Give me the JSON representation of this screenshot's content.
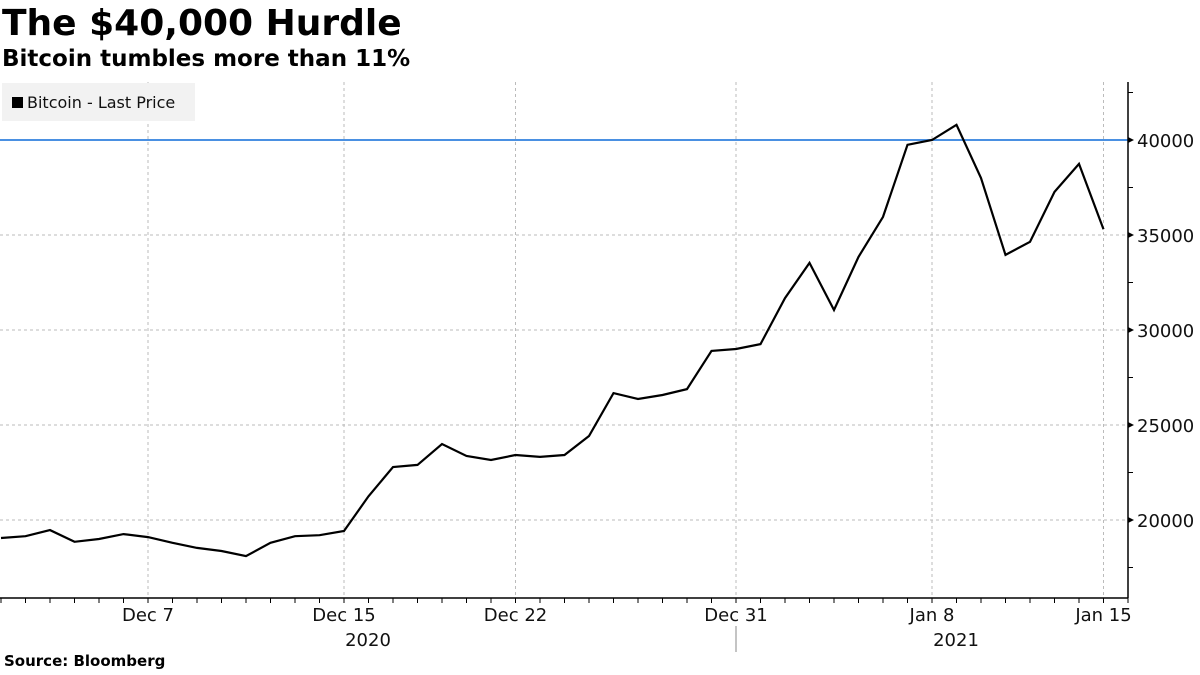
{
  "header": {
    "title": "The $40,000 Hurdle",
    "subtitle": "Bitcoin tumbles more than 11%"
  },
  "legend": {
    "label": "Bitcoin - Last Price",
    "swatch_color": "#000000"
  },
  "footer": {
    "source": "Source: Bloomberg"
  },
  "colors": {
    "line": "#000000",
    "threshold": "#4a90e2",
    "grid": "#bbbbbb",
    "legend_bg": "#f2f2f2"
  },
  "chart_data": {
    "type": "line",
    "title": "The $40,000 Hurdle",
    "subtitle": "Bitcoin tumbles more than 11%",
    "xlabel": "",
    "ylabel": "",
    "legend": [
      "Bitcoin - Last Price"
    ],
    "legend_position": "top-left",
    "grid": true,
    "ylim": [
      16500,
      43000
    ],
    "y_axis_side": "right",
    "y_ticks": [
      20000,
      25000,
      30000,
      35000,
      40000
    ],
    "x_tick_labels": [
      "Dec 7",
      "Dec 15",
      "Dec 22",
      "Dec 31",
      "Jan 8",
      "Jan 15"
    ],
    "x_year_labels": [
      {
        "label": "2020",
        "under": "Dec 15"
      },
      {
        "label": "2021",
        "under": "Jan 8"
      }
    ],
    "annotations": [
      {
        "type": "horizontal_line",
        "y": 40000,
        "color": "#4a90e2"
      }
    ],
    "x": [
      "2020-12-01",
      "2020-12-02",
      "2020-12-03",
      "2020-12-04",
      "2020-12-05",
      "2020-12-06",
      "2020-12-07",
      "2020-12-08",
      "2020-12-09",
      "2020-12-10",
      "2020-12-11",
      "2020-12-12",
      "2020-12-13",
      "2020-12-14",
      "2020-12-15",
      "2020-12-16",
      "2020-12-17",
      "2020-12-18",
      "2020-12-19",
      "2020-12-20",
      "2020-12-21",
      "2020-12-22",
      "2020-12-23",
      "2020-12-24",
      "2020-12-25",
      "2020-12-26",
      "2020-12-27",
      "2020-12-28",
      "2020-12-29",
      "2020-12-30",
      "2020-12-31",
      "2021-01-01",
      "2021-01-02",
      "2021-01-03",
      "2021-01-04",
      "2021-01-05",
      "2021-01-06",
      "2021-01-07",
      "2021-01-08",
      "2021-01-09",
      "2021-01-10",
      "2021-01-11",
      "2021-01-12",
      "2021-01-13",
      "2021-01-14",
      "2021-01-15"
    ],
    "series": [
      {
        "name": "Bitcoin - Last Price",
        "values": [
          19050,
          19150,
          19470,
          18850,
          19000,
          19260,
          19100,
          18800,
          18530,
          18370,
          18100,
          18800,
          19150,
          19200,
          19420,
          21250,
          22790,
          22900,
          24000,
          23370,
          23160,
          23420,
          23320,
          23420,
          24420,
          26680,
          26370,
          26580,
          26890,
          28900,
          29000,
          29260,
          31680,
          33530,
          31050,
          33850,
          35950,
          39750,
          40000,
          40800,
          38000,
          33950,
          34640,
          37270,
          38740,
          35300
        ]
      }
    ]
  }
}
